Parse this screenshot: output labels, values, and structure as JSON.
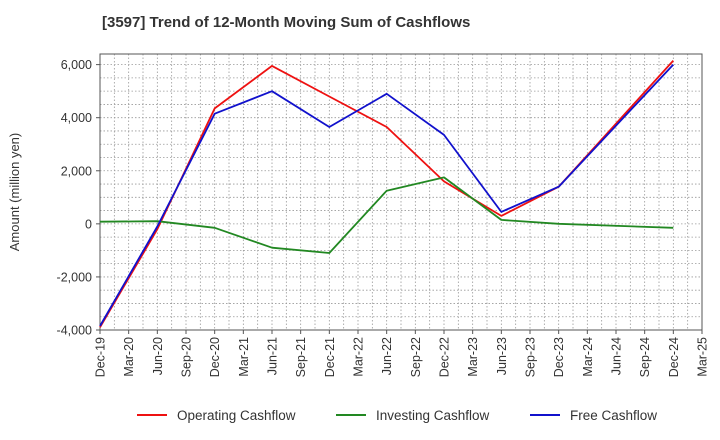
{
  "chart_data": {
    "type": "line",
    "title": "[3597]  Trend of 12-Month Moving Sum of Cashflows",
    "xlabel": "",
    "ylabel": "Amount (million yen)",
    "ylim": [
      -4000,
      6400
    ],
    "yticks": [
      -4000,
      -2000,
      0,
      2000,
      4000,
      6000
    ],
    "ytick_labels": [
      "-4,000",
      "-2,000",
      "0",
      "2,000",
      "4,000",
      "6,000"
    ],
    "x_tick_labels": [
      "Dec-19",
      "Mar-20",
      "Jun-20",
      "Sep-20",
      "Dec-20",
      "Mar-21",
      "Jun-21",
      "Sep-21",
      "Dec-21",
      "Mar-22",
      "Jun-22",
      "Sep-22",
      "Dec-22",
      "Mar-23",
      "Jun-23",
      "Sep-23",
      "Dec-23",
      "Mar-24",
      "Jun-24",
      "Sep-24",
      "Dec-24",
      "Mar-25"
    ],
    "grid": true,
    "legend_position": "bottom",
    "series": [
      {
        "name": "Operating Cashflow",
        "color": "#ee1111",
        "x": [
          "Dec-19",
          "Jun-20",
          "Dec-20",
          "Jun-21",
          "Dec-21",
          "Jun-22",
          "Dec-22",
          "Jun-23",
          "Dec-23",
          "Dec-24"
        ],
        "values": [
          -3900,
          -200,
          4350,
          5950,
          4800,
          3650,
          1600,
          300,
          1400,
          6150
        ]
      },
      {
        "name": "Investing Cashflow",
        "color": "#228822",
        "x": [
          "Dec-19",
          "Jun-20",
          "Dec-20",
          "Jun-21",
          "Dec-21",
          "Jun-22",
          "Dec-22",
          "Jun-23",
          "Dec-23",
          "Dec-24"
        ],
        "values": [
          80,
          100,
          -150,
          -900,
          -1100,
          1250,
          1750,
          150,
          0,
          -150
        ]
      },
      {
        "name": "Free Cashflow",
        "color": "#1111cc",
        "x": [
          "Dec-19",
          "Jun-20",
          "Dec-20",
          "Jun-21",
          "Dec-21",
          "Jun-22",
          "Dec-22",
          "Jun-23",
          "Dec-23",
          "Dec-24"
        ],
        "values": [
          -3850,
          -100,
          4150,
          5000,
          3650,
          4900,
          3350,
          450,
          1400,
          6000
        ]
      }
    ]
  }
}
